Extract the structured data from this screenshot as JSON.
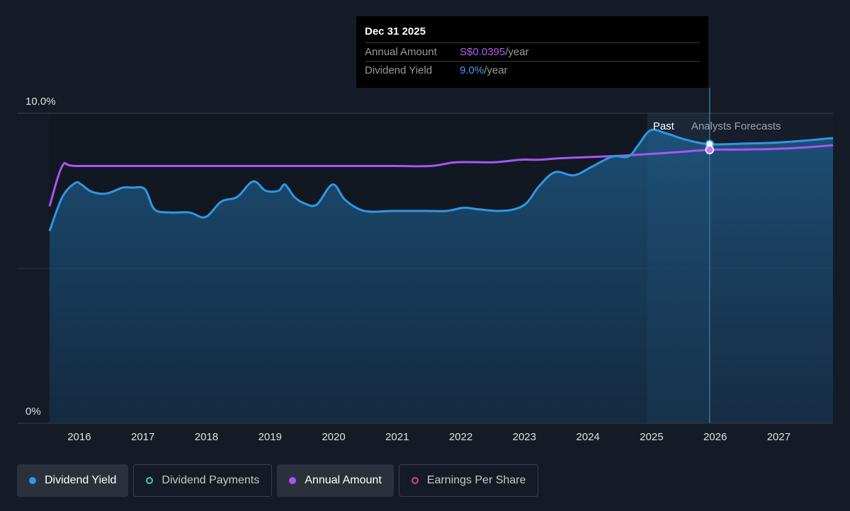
{
  "chart_data": {
    "type": "area",
    "y_axis": {
      "ticks": [
        "10.0%",
        "0%"
      ],
      "ylim": [
        0,
        10
      ]
    },
    "x_axis": {
      "ticks": [
        "2016",
        "2017",
        "2018",
        "2019",
        "2020",
        "2021",
        "2022",
        "2023",
        "2024",
        "2025",
        "2026",
        "2027"
      ],
      "xlim": [
        2015.6,
        2027.92
      ]
    },
    "regions": {
      "past_label": "Past",
      "forecast_label": "Analysts Forecasts",
      "past_start": 2025.0,
      "today": 2025.98
    },
    "series": [
      {
        "name": "Dividend Yield",
        "color": "#2f97e6",
        "points": [
          [
            2015.6,
            6.2
          ],
          [
            2015.8,
            7.3
          ],
          [
            2016.0,
            7.75
          ],
          [
            2016.1,
            7.7
          ],
          [
            2016.25,
            7.48
          ],
          [
            2016.45,
            7.4
          ],
          [
            2016.6,
            7.48
          ],
          [
            2016.75,
            7.6
          ],
          [
            2016.9,
            7.6
          ],
          [
            2017.1,
            7.55
          ],
          [
            2017.25,
            6.9
          ],
          [
            2017.5,
            6.8
          ],
          [
            2017.8,
            6.8
          ],
          [
            2018.05,
            6.65
          ],
          [
            2018.3,
            7.15
          ],
          [
            2018.55,
            7.3
          ],
          [
            2018.8,
            7.8
          ],
          [
            2019.0,
            7.5
          ],
          [
            2019.2,
            7.5
          ],
          [
            2019.3,
            7.7
          ],
          [
            2019.45,
            7.3
          ],
          [
            2019.6,
            7.1
          ],
          [
            2019.8,
            7.05
          ],
          [
            2020.05,
            7.7
          ],
          [
            2020.25,
            7.2
          ],
          [
            2020.55,
            6.85
          ],
          [
            2021.0,
            6.85
          ],
          [
            2021.5,
            6.85
          ],
          [
            2021.85,
            6.85
          ],
          [
            2022.1,
            6.95
          ],
          [
            2022.35,
            6.9
          ],
          [
            2022.65,
            6.85
          ],
          [
            2022.9,
            6.9
          ],
          [
            2023.1,
            7.1
          ],
          [
            2023.3,
            7.65
          ],
          [
            2023.55,
            8.1
          ],
          [
            2023.85,
            8.0
          ],
          [
            2024.15,
            8.3
          ],
          [
            2024.45,
            8.6
          ],
          [
            2024.7,
            8.6
          ],
          [
            2024.85,
            8.95
          ],
          [
            2025.05,
            9.45
          ],
          [
            2025.3,
            9.35
          ],
          [
            2025.6,
            9.15
          ],
          [
            2025.98,
            9.0
          ],
          [
            2026.5,
            9.02
          ],
          [
            2027.0,
            9.05
          ],
          [
            2027.5,
            9.12
          ],
          [
            2027.92,
            9.2
          ]
        ],
        "marker": [
          2025.98,
          9.0
        ]
      },
      {
        "name": "Annual Amount",
        "color": "#a855f7",
        "points": [
          [
            2015.6,
            7.0
          ],
          [
            2015.8,
            8.3
          ],
          [
            2016.0,
            8.3
          ],
          [
            2017.0,
            8.3
          ],
          [
            2018.0,
            8.3
          ],
          [
            2019.0,
            8.3
          ],
          [
            2020.0,
            8.3
          ],
          [
            2021.0,
            8.3
          ],
          [
            2021.6,
            8.3
          ],
          [
            2022.0,
            8.42
          ],
          [
            2022.6,
            8.42
          ],
          [
            2023.0,
            8.5
          ],
          [
            2023.3,
            8.5
          ],
          [
            2023.65,
            8.55
          ],
          [
            2024.0,
            8.58
          ],
          [
            2024.5,
            8.62
          ],
          [
            2025.0,
            8.68
          ],
          [
            2025.5,
            8.75
          ],
          [
            2025.98,
            8.82
          ],
          [
            2026.5,
            8.83
          ],
          [
            2027.0,
            8.85
          ],
          [
            2027.5,
            8.9
          ],
          [
            2027.92,
            8.97
          ]
        ],
        "marker": [
          2025.98,
          8.82
        ]
      }
    ]
  },
  "tooltip": {
    "date": "Dec 31 2025",
    "annual_amount_label": "Annual Amount",
    "annual_amount_value": "S$0.0395",
    "dividend_yield_label": "Dividend Yield",
    "dividend_yield_value": "9.0%",
    "unit": "/year"
  },
  "legend": [
    {
      "label": "Dividend Yield",
      "color": "#2f97e6",
      "active": true,
      "filled": true
    },
    {
      "label": "Dividend Payments",
      "color": "#3fd0b5",
      "active": false,
      "filled": false
    },
    {
      "label": "Annual Amount",
      "color": "#a855f7",
      "active": true,
      "filled": true
    },
    {
      "label": "Earnings Per Share",
      "color": "#d0457e",
      "active": false,
      "filled": false
    }
  ]
}
